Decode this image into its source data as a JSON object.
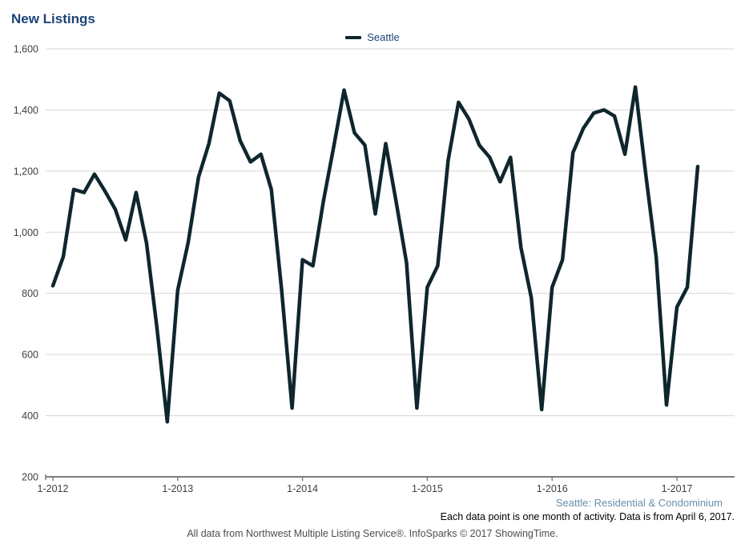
{
  "header": {
    "title": "New Listings"
  },
  "legend": {
    "label": "Seattle",
    "swatch_color": "#0f262d"
  },
  "footer": {
    "series_note": "Seattle: Residential & Condominium",
    "data_note": "Each data point is one month of activity. Data is from April 6, 2017.",
    "source_note": "All data from Northwest Multiple Listing Service®. InfoSparks © 2017 ShowingTime."
  },
  "chart_data": {
    "type": "line",
    "title": "New Listings",
    "ylabel": "",
    "xlabel": "",
    "ylim": [
      200,
      1600
    ],
    "y_ticks": [
      200,
      400,
      600,
      800,
      1000,
      1200,
      1400,
      1600
    ],
    "grid": "horizontal",
    "legend_position": "top-center",
    "x_tick_labels": [
      "1-2012",
      "1-2013",
      "1-2014",
      "1-2015",
      "1-2016",
      "1-2017"
    ],
    "x": [
      "1-2012",
      "2-2012",
      "3-2012",
      "4-2012",
      "5-2012",
      "6-2012",
      "7-2012",
      "8-2012",
      "9-2012",
      "10-2012",
      "11-2012",
      "12-2012",
      "1-2013",
      "2-2013",
      "3-2013",
      "4-2013",
      "5-2013",
      "6-2013",
      "7-2013",
      "8-2013",
      "9-2013",
      "10-2013",
      "11-2013",
      "12-2013",
      "1-2014",
      "2-2014",
      "3-2014",
      "4-2014",
      "5-2014",
      "6-2014",
      "7-2014",
      "8-2014",
      "9-2014",
      "10-2014",
      "11-2014",
      "12-2014",
      "1-2015",
      "2-2015",
      "3-2015",
      "4-2015",
      "5-2015",
      "6-2015",
      "7-2015",
      "8-2015",
      "9-2015",
      "10-2015",
      "11-2015",
      "12-2015",
      "1-2016",
      "2-2016",
      "3-2016",
      "4-2016",
      "5-2016",
      "6-2016",
      "7-2016",
      "8-2016",
      "9-2016",
      "10-2016",
      "11-2016",
      "12-2016",
      "1-2017",
      "2-2017",
      "3-2017"
    ],
    "series": [
      {
        "name": "Seattle",
        "color": "#0f262d",
        "values": [
          825,
          920,
          1140,
          1130,
          1190,
          1135,
          1075,
          975,
          1130,
          965,
          690,
          380,
          810,
          965,
          1180,
          1290,
          1455,
          1430,
          1300,
          1230,
          1255,
          1140,
          810,
          425,
          910,
          890,
          1100,
          1280,
          1465,
          1325,
          1285,
          1060,
          1290,
          1100,
          900,
          425,
          820,
          890,
          1235,
          1425,
          1370,
          1285,
          1245,
          1165,
          1245,
          950,
          785,
          420,
          820,
          910,
          1260,
          1340,
          1390,
          1400,
          1380,
          1255,
          1475,
          1190,
          920,
          435,
          755,
          820,
          1215
        ]
      }
    ]
  },
  "axis_style": {
    "grid_color": "#d5d5d5",
    "axis_color": "#7d7d7d",
    "label_color": "#3f3f3f"
  }
}
